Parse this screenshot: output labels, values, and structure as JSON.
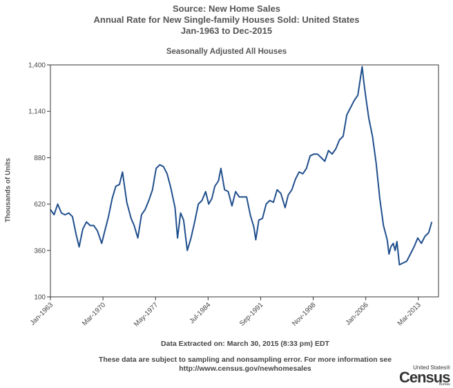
{
  "header": {
    "line1": "Source: New Home Sales",
    "line2": "Annual Rate for New Single-family Houses Sold: United States",
    "line3": "Jan-1963 to Dec-2015"
  },
  "footer": {
    "extracted": "Data Extracted on: March 30, 2015 (8:33 pm) EDT",
    "note1": "These data are subject to sampling and nonsampling error. For more information see",
    "note2": "http://www.census.gov/newhomesales"
  },
  "logo": {
    "small": "United States®",
    "big": "Census",
    "bureau": "Bureau"
  },
  "colors": {
    "line": "#1f4e8c",
    "axis": "#333333",
    "grid": "#e6e6e6"
  },
  "chart_data": {
    "type": "line",
    "title": "Seasonally Adjusted All Houses",
    "xlabel": "",
    "ylabel": "Thousands of Units",
    "ylim": [
      100,
      1400
    ],
    "yticks": [
      100,
      360,
      620,
      880,
      1140,
      1400
    ],
    "ytick_labels": [
      "100",
      "360",
      "620",
      "880",
      "1,140",
      "1,400"
    ],
    "xlim": [
      "1963-01",
      "2015-12"
    ],
    "xticks": [
      "1963-01",
      "1970-03",
      "1977-05",
      "1984-07",
      "1991-09",
      "1998-11",
      "2006-01",
      "2013-03"
    ],
    "xtick_labels": [
      "Jan-1963",
      "Mar-1970",
      "May-1977",
      "Jul-1984",
      "Sep-1991",
      "Nov-1998",
      "Jan-2006",
      "Mar-2013"
    ],
    "grid": false,
    "series": [
      {
        "values": [
          [
            "1963-01",
            590
          ],
          [
            "1963-07",
            560
          ],
          [
            "1964-01",
            620
          ],
          [
            "1964-07",
            570
          ],
          [
            "1965-01",
            560
          ],
          [
            "1965-07",
            570
          ],
          [
            "1966-01",
            550
          ],
          [
            "1966-07",
            450
          ],
          [
            "1966-12",
            380
          ],
          [
            "1967-06",
            480
          ],
          [
            "1967-12",
            520
          ],
          [
            "1968-06",
            500
          ],
          [
            "1968-12",
            500
          ],
          [
            "1969-06",
            470
          ],
          [
            "1970-01",
            400
          ],
          [
            "1970-06",
            470
          ],
          [
            "1970-12",
            550
          ],
          [
            "1971-06",
            650
          ],
          [
            "1971-12",
            720
          ],
          [
            "1972-06",
            730
          ],
          [
            "1972-11",
            800
          ],
          [
            "1973-06",
            630
          ],
          [
            "1974-01",
            540
          ],
          [
            "1974-06",
            500
          ],
          [
            "1974-12",
            430
          ],
          [
            "1975-06",
            560
          ],
          [
            "1975-12",
            590
          ],
          [
            "1976-06",
            640
          ],
          [
            "1976-12",
            700
          ],
          [
            "1977-06",
            820
          ],
          [
            "1977-12",
            840
          ],
          [
            "1978-06",
            830
          ],
          [
            "1978-12",
            790
          ],
          [
            "1979-06",
            710
          ],
          [
            "1980-01",
            600
          ],
          [
            "1980-05",
            430
          ],
          [
            "1980-10",
            570
          ],
          [
            "1981-03",
            530
          ],
          [
            "1981-09",
            360
          ],
          [
            "1982-03",
            430
          ],
          [
            "1982-09",
            520
          ],
          [
            "1983-03",
            620
          ],
          [
            "1983-09",
            640
          ],
          [
            "1984-03",
            690
          ],
          [
            "1984-08",
            620
          ],
          [
            "1985-01",
            650
          ],
          [
            "1985-06",
            720
          ],
          [
            "1985-12",
            750
          ],
          [
            "1986-04",
            820
          ],
          [
            "1986-10",
            700
          ],
          [
            "1987-04",
            690
          ],
          [
            "1987-10",
            610
          ],
          [
            "1988-04",
            690
          ],
          [
            "1988-10",
            660
          ],
          [
            "1989-04",
            660
          ],
          [
            "1989-10",
            660
          ],
          [
            "1990-04",
            560
          ],
          [
            "1990-10",
            490
          ],
          [
            "1991-01",
            420
          ],
          [
            "1991-06",
            530
          ],
          [
            "1991-12",
            540
          ],
          [
            "1992-06",
            620
          ],
          [
            "1992-12",
            640
          ],
          [
            "1993-06",
            630
          ],
          [
            "1993-12",
            700
          ],
          [
            "1994-06",
            680
          ],
          [
            "1995-01",
            600
          ],
          [
            "1995-06",
            670
          ],
          [
            "1995-12",
            700
          ],
          [
            "1996-06",
            760
          ],
          [
            "1996-12",
            800
          ],
          [
            "1997-06",
            790
          ],
          [
            "1997-12",
            820
          ],
          [
            "1998-06",
            890
          ],
          [
            "1998-12",
            900
          ],
          [
            "1999-06",
            900
          ],
          [
            "1999-12",
            880
          ],
          [
            "2000-06",
            860
          ],
          [
            "2000-12",
            920
          ],
          [
            "2001-06",
            900
          ],
          [
            "2001-12",
            930
          ],
          [
            "2002-06",
            980
          ],
          [
            "2002-12",
            1000
          ],
          [
            "2003-06",
            1120
          ],
          [
            "2003-12",
            1160
          ],
          [
            "2004-06",
            1200
          ],
          [
            "2004-12",
            1230
          ],
          [
            "2005-04",
            1320
          ],
          [
            "2005-07",
            1390
          ],
          [
            "2005-10",
            1300
          ],
          [
            "2006-01",
            1220
          ],
          [
            "2006-06",
            1100
          ],
          [
            "2006-12",
            1000
          ],
          [
            "2007-06",
            850
          ],
          [
            "2007-12",
            650
          ],
          [
            "2008-06",
            500
          ],
          [
            "2008-12",
            420
          ],
          [
            "2009-03",
            340
          ],
          [
            "2009-06",
            380
          ],
          [
            "2009-10",
            400
          ],
          [
            "2010-01",
            360
          ],
          [
            "2010-04",
            410
          ],
          [
            "2010-08",
            280
          ],
          [
            "2011-02",
            290
          ],
          [
            "2011-08",
            300
          ],
          [
            "2012-02",
            340
          ],
          [
            "2012-08",
            380
          ],
          [
            "2013-02",
            430
          ],
          [
            "2013-08",
            400
          ],
          [
            "2014-02",
            440
          ],
          [
            "2014-08",
            460
          ],
          [
            "2015-01",
            520
          ]
        ]
      }
    ]
  }
}
